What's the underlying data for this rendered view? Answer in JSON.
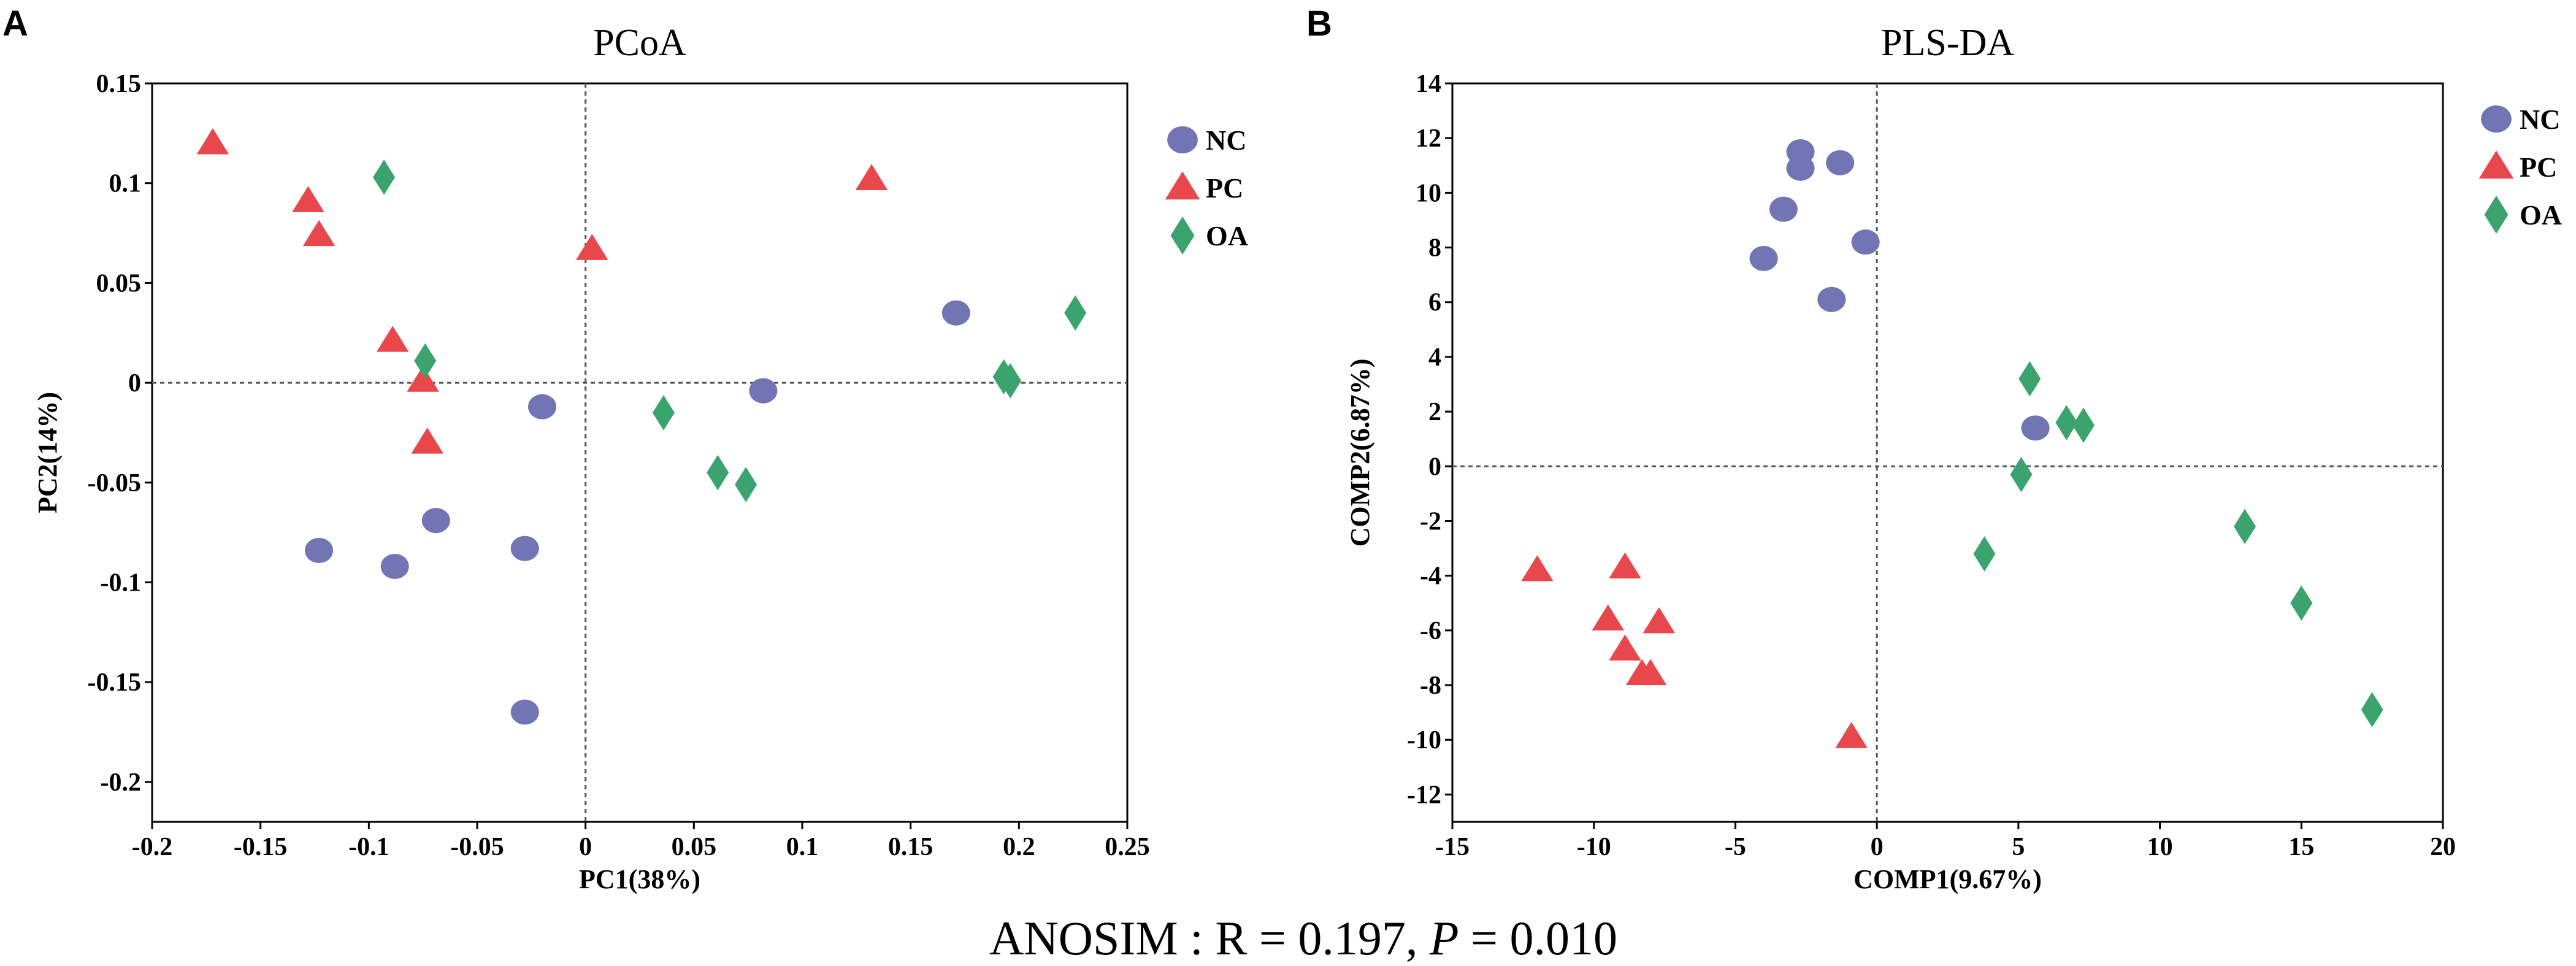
{
  "panel_labels": {
    "a": "A",
    "b": "B"
  },
  "colors": {
    "NC": "#7275b3",
    "PC": "#e8474c",
    "OA": "#3aa36e"
  },
  "footer": {
    "prefix": "ANOSIM : R = 0.197, ",
    "p_symbol": "P",
    "suffix": " = 0.010"
  },
  "chart_data": [
    {
      "type": "scatter",
      "title": "PCoA",
      "xlabel": "PC1(38%)",
      "ylabel": "PC2(14%)",
      "xlim": [
        -0.2,
        0.25
      ],
      "ylim": [
        -0.22,
        0.15
      ],
      "xticks": [
        -0.2,
        -0.15,
        -0.1,
        -0.05,
        0,
        0.05,
        0.1,
        0.15,
        0.2,
        0.25
      ],
      "xtick_labels": [
        "-0.2",
        "-0.15",
        "-0.1",
        "-0.05",
        "0",
        "0.05",
        "0.1",
        "0.15",
        "0.2",
        "0.25"
      ],
      "yticks": [
        -0.2,
        -0.15,
        -0.1,
        -0.05,
        0,
        0.05,
        0.1,
        0.15
      ],
      "ytick_labels": [
        "-0.2",
        "-0.15",
        "-0.1",
        "-0.05",
        "0",
        "0.05",
        "0.1",
        "0.15"
      ],
      "reference_lines": {
        "x": 0,
        "y": 0
      },
      "legend": "top-right",
      "series": [
        {
          "name": "NC",
          "marker": "circle",
          "points": [
            [
              -0.123,
              -0.084
            ],
            [
              -0.088,
              -0.092
            ],
            [
              -0.069,
              -0.069
            ],
            [
              -0.028,
              -0.083
            ],
            [
              -0.028,
              -0.165
            ],
            [
              -0.02,
              -0.012
            ],
            [
              0.082,
              -0.004
            ],
            [
              0.171,
              0.035
            ]
          ]
        },
        {
          "name": "PC",
          "marker": "triangle",
          "points": [
            [
              -0.172,
              0.12
            ],
            [
              -0.128,
              0.091
            ],
            [
              -0.123,
              0.074
            ],
            [
              -0.089,
              0.021
            ],
            [
              -0.075,
              0.001
            ],
            [
              -0.073,
              -0.03
            ],
            [
              0.003,
              0.067
            ],
            [
              0.132,
              0.102
            ]
          ]
        },
        {
          "name": "OA",
          "marker": "diamond",
          "points": [
            [
              -0.093,
              0.103
            ],
            [
              -0.074,
              0.011
            ],
            [
              0.036,
              -0.015
            ],
            [
              0.061,
              -0.045
            ],
            [
              0.074,
              -0.051
            ],
            [
              0.193,
              0.003
            ],
            [
              0.196,
              0.001
            ],
            [
              0.226,
              0.035
            ]
          ]
        }
      ]
    },
    {
      "type": "scatter",
      "title": "PLS-DA",
      "xlabel": "COMP1(9.67%)",
      "ylabel": "COMP2(6.87%)",
      "xlim": [
        -15,
        20
      ],
      "ylim": [
        -13,
        14
      ],
      "xticks": [
        -15,
        -10,
        -5,
        0,
        5,
        10,
        15,
        20
      ],
      "xtick_labels": [
        "-15",
        "-10",
        "-5",
        "0",
        "5",
        "10",
        "15",
        "20"
      ],
      "yticks": [
        -12,
        -10,
        -8,
        -6,
        -4,
        -2,
        0,
        2,
        4,
        6,
        8,
        10,
        12,
        14
      ],
      "ytick_labels": [
        "-12",
        "-10",
        "-8",
        "-6",
        "-4",
        "-2",
        "0",
        "2",
        "4",
        "6",
        "8",
        "10",
        "12",
        "14"
      ],
      "reference_lines": {
        "x": 0,
        "y": 0
      },
      "legend": "top-right",
      "series": [
        {
          "name": "NC",
          "marker": "circle",
          "points": [
            [
              -2.7,
              11.5
            ],
            [
              -2.7,
              10.9
            ],
            [
              -1.3,
              11.1
            ],
            [
              -3.3,
              9.4
            ],
            [
              -0.4,
              8.2
            ],
            [
              -4.0,
              7.6
            ],
            [
              -1.6,
              6.1
            ],
            [
              5.6,
              1.4
            ]
          ]
        },
        {
          "name": "PC",
          "marker": "triangle",
          "points": [
            [
              -12.0,
              -3.8
            ],
            [
              -8.9,
              -3.7
            ],
            [
              -9.5,
              -5.6
            ],
            [
              -7.7,
              -5.7
            ],
            [
              -8.9,
              -6.7
            ],
            [
              -8.3,
              -7.6
            ],
            [
              -8.0,
              -7.6
            ],
            [
              -0.9,
              -9.9
            ]
          ]
        },
        {
          "name": "OA",
          "marker": "diamond",
          "points": [
            [
              5.4,
              3.2
            ],
            [
              6.7,
              1.6
            ],
            [
              7.3,
              1.5
            ],
            [
              5.1,
              -0.3
            ],
            [
              3.8,
              -3.2
            ],
            [
              13.0,
              -2.2
            ],
            [
              15.0,
              -5.0
            ],
            [
              17.5,
              -8.9
            ]
          ]
        }
      ]
    }
  ]
}
